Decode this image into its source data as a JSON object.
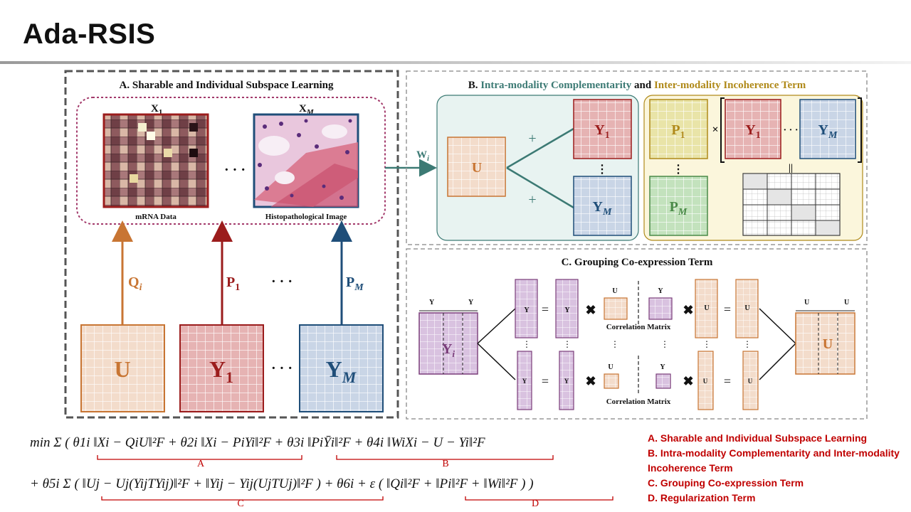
{
  "title": "Ada-RSIS",
  "panel_a": {
    "heading": "A. Sharable and Individual  Subspace Learning",
    "x1_label": "X",
    "x1_sub": "1",
    "xm_label": "X",
    "xm_sub": "M",
    "mrna_caption": "mRNA Data",
    "histo_caption": "Histopathological Image",
    "ellipsis": "· · ·",
    "q_label": "Q",
    "q_sub": "i",
    "p1_label": "P",
    "p1_sub": "1",
    "pm_label": "P",
    "pm_sub": "M",
    "u_label": "U",
    "y1_label": "Y",
    "y1_sub": "1",
    "ym_label": "Y",
    "ym_sub": "M"
  },
  "panel_b": {
    "heading_prefix": "B. ",
    "heading_intra": "Intra-modality  Complementarity",
    "heading_and": " and ",
    "heading_inter": "Inter-modality  Incoherence Term",
    "w_label": "W",
    "w_sub": "i",
    "u_label": "U",
    "plus": "+",
    "y1_label": "Y",
    "y1_sub": "1",
    "ym_label": "Y",
    "ym_sub": "M",
    "p1_label": "P",
    "p1_sub": "1",
    "pm_label": "P",
    "pm_sub": "M",
    "times": "×",
    "equals": "||",
    "dots": "· · ·"
  },
  "panel_c": {
    "heading": "C. Grouping Co-expression Term",
    "yi_label": "Y",
    "yi_sub": "i",
    "u_label": "U",
    "corr_label": "Correlation  Matrix",
    "y1_small": "Y",
    "yr_small": "Y",
    "u1_small": "U",
    "ur_small": "U",
    "eq_sign": "=",
    "times": "✖"
  },
  "equation": {
    "line1": "min Σ ( θ1i ‖Xi − QiU‖²F + θ2i ‖Xi − PiYi‖²F + θ3i ‖PiȲi‖²F + θ4i ‖WiXi − U − Yi‖²F",
    "line2": "+ θ5i Σ ( ‖Uj − Uj(YijTYij)‖²F + ‖Yij − Yij(UjTUj)‖²F ) + θ6i + ε ( ‖Qi‖²F + ‖Pi‖²F + ‖Wi‖²F ) )",
    "brace_a": "A",
    "brace_b": "B",
    "brace_c": "C",
    "brace_d": "D"
  },
  "legend": [
    "A. Sharable and Individual Subspace Learning",
    "B. Intra-modality Complementarity and Inter-modality Incoherence Term",
    "C. Grouping Co-expression Term",
    "D. Regularization Term"
  ],
  "colors": {
    "accent_red": "#c00000",
    "orange": "#c87533",
    "dark_red": "#9b1c1c",
    "blue": "#1f4e79",
    "teal": "#3c7a74",
    "gold": "#b08a1a",
    "green": "#4a8a48",
    "purple": "#7a3d7a"
  }
}
